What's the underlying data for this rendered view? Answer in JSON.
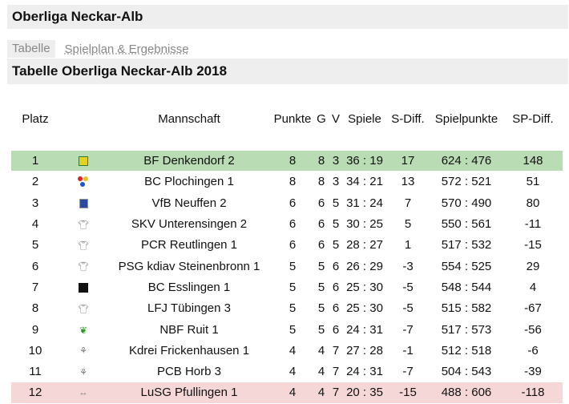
{
  "header": {
    "title": "Oberliga Neckar-Alb"
  },
  "tabs": [
    {
      "label": "Tabelle",
      "active": true
    },
    {
      "label": "Spielplan & Ergebnisse",
      "active": false
    }
  ],
  "table_title": "Tabelle Oberliga Neckar-Alb 2018",
  "columns": {
    "platz": "Platz",
    "mannschaft": "Mannschaft",
    "punkte": "Punkte",
    "g": "G",
    "v": "V",
    "spiele": "Spiele",
    "sdiff": "S-Diff.",
    "spielpunkte": "Spielpunkte",
    "spdiff": "SP-Diff."
  },
  "rows": [
    {
      "platz": "1",
      "team": "BF Denkendorf 2",
      "logo": "shield-yellow-icon",
      "punkte": "8",
      "g": "8",
      "v": "3",
      "spiele": "36 : 19",
      "sdiff": "17",
      "spielpunkte": "624 : 476",
      "spdiff": "148",
      "status": "promo"
    },
    {
      "platz": "2",
      "team": "BC Plochingen 1",
      "logo": "colored-dots-icon",
      "punkte": "8",
      "g": "8",
      "v": "3",
      "spiele": "34 : 21",
      "sdiff": "13",
      "spielpunkte": "572 : 521",
      "spdiff": "51",
      "status": ""
    },
    {
      "platz": "3",
      "team": "VfB Neuffen 2",
      "logo": "shield-blue-icon",
      "punkte": "6",
      "g": "6",
      "v": "5",
      "spiele": "31 : 24",
      "sdiff": "7",
      "spielpunkte": "570 : 490",
      "spdiff": "80",
      "status": ""
    },
    {
      "platz": "4",
      "team": "SKV Unterensingen 2",
      "logo": "shirt-icon",
      "punkte": "6",
      "g": "6",
      "v": "5",
      "spiele": "30 : 25",
      "sdiff": "5",
      "spielpunkte": "550 : 561",
      "spdiff": "-11",
      "status": ""
    },
    {
      "platz": "5",
      "team": "PCR Reutlingen 1",
      "logo": "shirt-icon",
      "punkte": "6",
      "g": "6",
      "v": "5",
      "spiele": "28 : 27",
      "sdiff": "1",
      "spielpunkte": "517 : 532",
      "spdiff": "-15",
      "status": ""
    },
    {
      "platz": "6",
      "team": "PSG kdiav Steinenbronn 1",
      "logo": "shirt-icon",
      "punkte": "5",
      "g": "5",
      "v": "6",
      "spiele": "26 : 29",
      "sdiff": "-3",
      "spielpunkte": "554 : 525",
      "spdiff": "29",
      "status": ""
    },
    {
      "platz": "7",
      "team": "BC Esslingen 1",
      "logo": "black-square-icon",
      "punkte": "5",
      "g": "5",
      "v": "6",
      "spiele": "25 : 30",
      "sdiff": "-5",
      "spielpunkte": "548 : 544",
      "spdiff": "4",
      "status": ""
    },
    {
      "platz": "8",
      "team": "LFJ Tübingen 3",
      "logo": "shirt-icon",
      "punkte": "5",
      "g": "5",
      "v": "6",
      "spiele": "25 : 30",
      "sdiff": "-5",
      "spielpunkte": "515 : 582",
      "spdiff": "-67",
      "status": ""
    },
    {
      "platz": "9",
      "team": "NBF Ruit 1",
      "logo": "green-figure-icon",
      "punkte": "5",
      "g": "5",
      "v": "6",
      "spiele": "24 : 31",
      "sdiff": "-7",
      "spielpunkte": "517 : 573",
      "spdiff": "-56",
      "status": ""
    },
    {
      "platz": "10",
      "team": "Kdrei Frickenhausen 1",
      "logo": "grey-figure-icon",
      "punkte": "4",
      "g": "4",
      "v": "7",
      "spiele": "27 : 28",
      "sdiff": "-1",
      "spielpunkte": "512 : 518",
      "spdiff": "-6",
      "status": ""
    },
    {
      "platz": "11",
      "team": "PCB Horb 3",
      "logo": "grey-badge-icon",
      "punkte": "4",
      "g": "4",
      "v": "7",
      "spiele": "24 : 31",
      "sdiff": "-7",
      "spielpunkte": "504 : 543",
      "spdiff": "-39",
      "status": ""
    },
    {
      "platz": "12",
      "team": "LuSG Pfullingen 1",
      "logo": "grey-wings-icon",
      "punkte": "4",
      "g": "4",
      "v": "7",
      "spiele": "20 : 35",
      "sdiff": "-15",
      "spielpunkte": "488 : 606",
      "spdiff": "-118",
      "status": "releg"
    }
  ],
  "colors": {
    "promo": "#b9dcb4",
    "releg": "#f5d7d7",
    "bar": "#eeeeee"
  }
}
